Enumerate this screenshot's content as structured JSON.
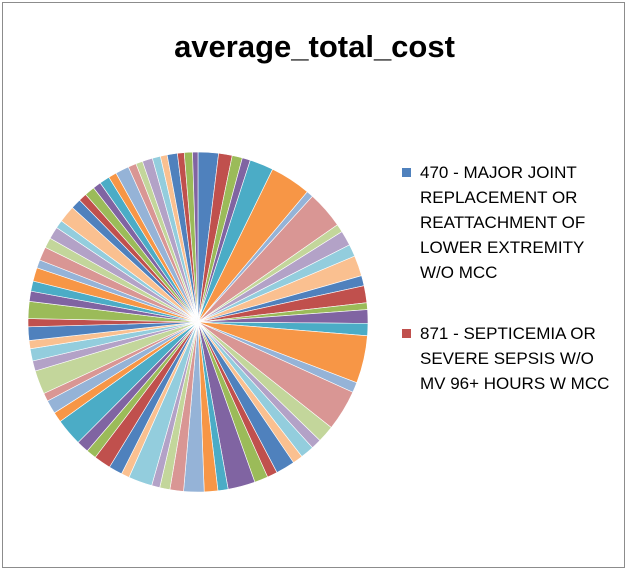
{
  "chart_data": {
    "type": "pie",
    "title": "average_total_cost",
    "legend_position": "right",
    "legend": [
      {
        "label": "470 - MAJOR JOINT REPLACEMENT OR REATTACHMENT OF LOWER EXTREMITY W/O MCC",
        "color": "#4f81bd"
      },
      {
        "label": "871 - SEPTICEMIA OR SEVERE SEPSIS W/O MV 96+ HOURS W MCC",
        "color": "#c0504d"
      }
    ],
    "palette": [
      "#4f81bd",
      "#c0504d",
      "#9bbb59",
      "#8064a2",
      "#4bacc6",
      "#f79646",
      "#95b3d7",
      "#d99694",
      "#c3d69b",
      "#b3a2c7",
      "#93cddd",
      "#fac090"
    ],
    "values": [
      3,
      2,
      1.5,
      1.2,
      3.5,
      6,
      1,
      5.5,
      1.2,
      2.2,
      1.8,
      3,
      1.5,
      2.5,
      1,
      2,
      1.8,
      7,
      1.5,
      6,
      2.5,
      1.5,
      2,
      1.5,
      2.8,
      1.5,
      2,
      4,
      1.5,
      2,
      3,
      2,
      1.5,
      1.2,
      3.5,
      1.2,
      2,
      2.5,
      1.5,
      1.8,
      4,
      1.5,
      2,
      1.2,
      3.5,
      1.5,
      1.8,
      1.2,
      2,
      1.2,
      2.5,
      1.5,
      1.5,
      2,
      1.2,
      2,
      1.5,
      1.8,
      1.2,
      2.5,
      1.5,
      1.2,
      1.5,
      1.2,
      1.5,
      1.2,
      2,
      1.2,
      1,
      1.5,
      1.2,
      1,
      1.5,
      1,
      1.2,
      0.8
    ]
  }
}
